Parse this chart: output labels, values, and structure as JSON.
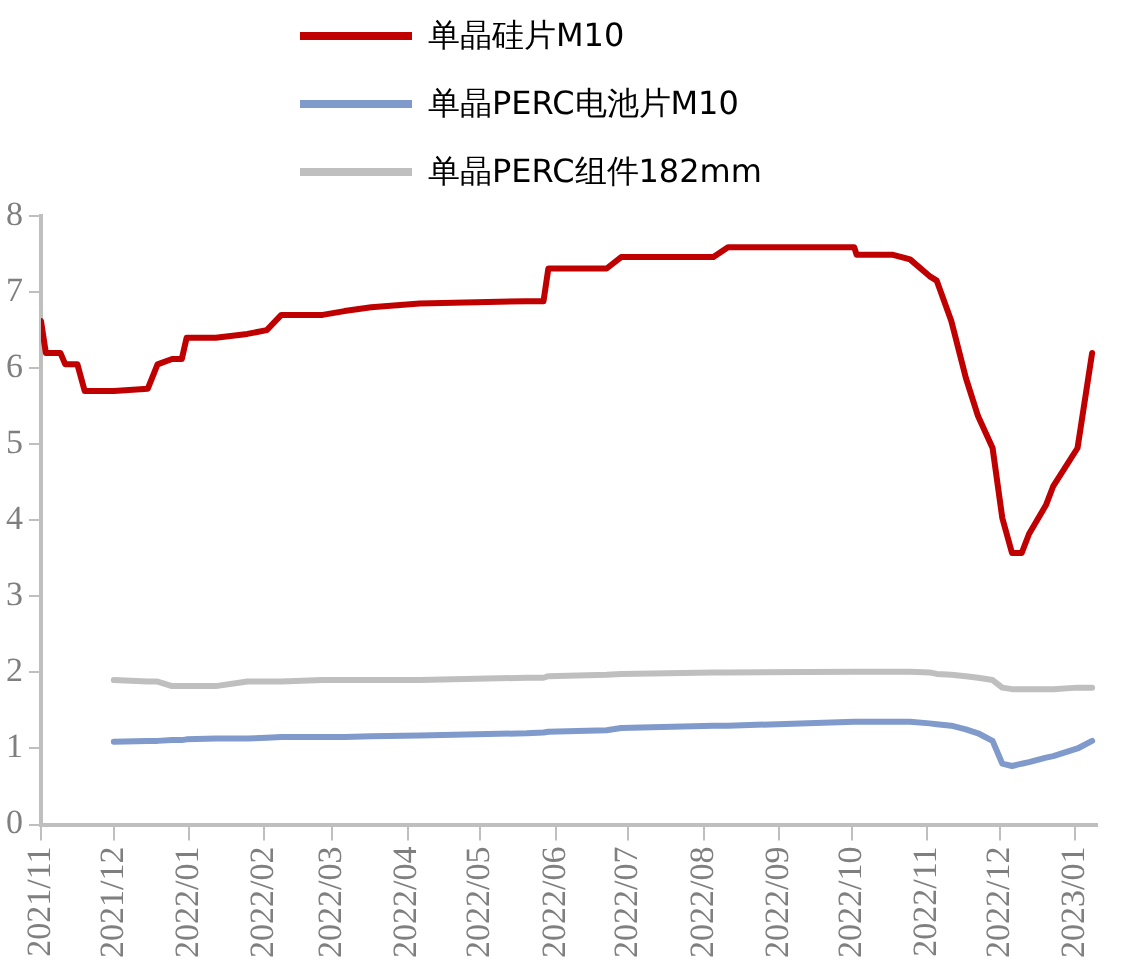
{
  "chart_data": {
    "type": "line",
    "x": [
      "2021-11-01",
      "2021-11-03",
      "2021-11-09",
      "2021-11-11",
      "2021-11-16",
      "2021-11-19",
      "2021-12-01",
      "2021-12-15",
      "2021-12-19",
      "2021-12-25",
      "2021-12-29",
      "2021-12-31",
      "2022-01-12",
      "2022-01-25",
      "2022-02-02",
      "2022-02-08",
      "2022-02-25",
      "2022-03-06",
      "2022-03-17",
      "2022-04-06",
      "2022-05-20",
      "2022-05-27",
      "2022-05-29",
      "2022-06-22",
      "2022-06-28",
      "2022-08-05",
      "2022-08-11",
      "2022-10-02",
      "2022-10-03",
      "2022-10-18",
      "2022-10-25",
      "2022-11-02",
      "2022-11-05",
      "2022-11-11",
      "2022-11-17",
      "2022-11-22",
      "2022-11-28",
      "2022-12-02",
      "2022-12-06",
      "2022-12-10",
      "2022-12-13",
      "2022-12-20",
      "2022-12-23",
      "2023-01-02",
      "2023-01-08"
    ],
    "series": [
      {
        "name": "单晶硅片M10",
        "color": "#c00000",
        "values": [
          6.62,
          6.2,
          6.2,
          6.05,
          6.05,
          5.7,
          5.7,
          5.73,
          6.05,
          6.12,
          6.12,
          6.4,
          6.4,
          6.45,
          6.5,
          6.7,
          6.7,
          6.75,
          6.8,
          6.85,
          6.88,
          6.88,
          7.31,
          7.31,
          7.46,
          7.46,
          7.59,
          7.59,
          7.49,
          7.49,
          7.43,
          7.21,
          7.15,
          6.62,
          5.87,
          5.37,
          4.95,
          4.03,
          3.57,
          3.57,
          3.82,
          4.2,
          4.45,
          4.95,
          6.2
        ]
      },
      {
        "name": "单晶PERC电池片M10",
        "color": "#7f9acb",
        "values": [
          null,
          null,
          null,
          null,
          null,
          null,
          1.09,
          1.1,
          1.1,
          1.11,
          1.11,
          1.12,
          1.13,
          1.13,
          1.14,
          1.15,
          1.15,
          1.15,
          1.16,
          1.17,
          1.2,
          1.21,
          1.22,
          1.24,
          1.27,
          1.3,
          1.3,
          1.35,
          1.35,
          1.35,
          1.35,
          1.33,
          1.32,
          1.3,
          1.25,
          1.2,
          1.1,
          0.8,
          0.77,
          0.8,
          0.82,
          0.88,
          0.9,
          1.0,
          1.1
        ]
      },
      {
        "name": "单晶PERC组件182mm",
        "color": "#bfbfbf",
        "values": [
          null,
          null,
          null,
          null,
          null,
          null,
          1.9,
          1.88,
          1.88,
          1.82,
          1.82,
          1.82,
          1.82,
          1.88,
          1.88,
          1.88,
          1.9,
          1.9,
          1.9,
          1.9,
          1.93,
          1.93,
          1.95,
          1.97,
          1.98,
          2.0,
          2.0,
          2.01,
          2.01,
          2.01,
          2.01,
          2.0,
          1.98,
          1.97,
          1.95,
          1.93,
          1.9,
          1.8,
          1.78,
          1.78,
          1.78,
          1.78,
          1.78,
          1.8,
          1.8
        ]
      }
    ],
    "xlim": [
      "2021-11-01",
      "2023-01-10"
    ],
    "xticks": [
      {
        "value": "2021-11",
        "label": "2021/11"
      },
      {
        "value": "2021-12",
        "label": "2021/12"
      },
      {
        "value": "2022-01",
        "label": "2022/01"
      },
      {
        "value": "2022-02",
        "label": "2022/02"
      },
      {
        "value": "2022-03",
        "label": "2022/03"
      },
      {
        "value": "2022-04",
        "label": "2022/04"
      },
      {
        "value": "2022-05",
        "label": "2022/05"
      },
      {
        "value": "2022-06",
        "label": "2022/06"
      },
      {
        "value": "2022-07",
        "label": "2022/07"
      },
      {
        "value": "2022-08",
        "label": "2022/08"
      },
      {
        "value": "2022-09",
        "label": "2022/09"
      },
      {
        "value": "2022-10",
        "label": "2022/10"
      },
      {
        "value": "2022-11",
        "label": "2022/11"
      },
      {
        "value": "2022-12",
        "label": "2022/12"
      },
      {
        "value": "2023-01",
        "label": "2023/01"
      }
    ],
    "ylim": [
      0,
      8
    ],
    "yticks": [
      0,
      1,
      2,
      3,
      4,
      5,
      6,
      7,
      8
    ],
    "grid": false,
    "legend": "top",
    "marker": "none",
    "line_style": "solid"
  }
}
